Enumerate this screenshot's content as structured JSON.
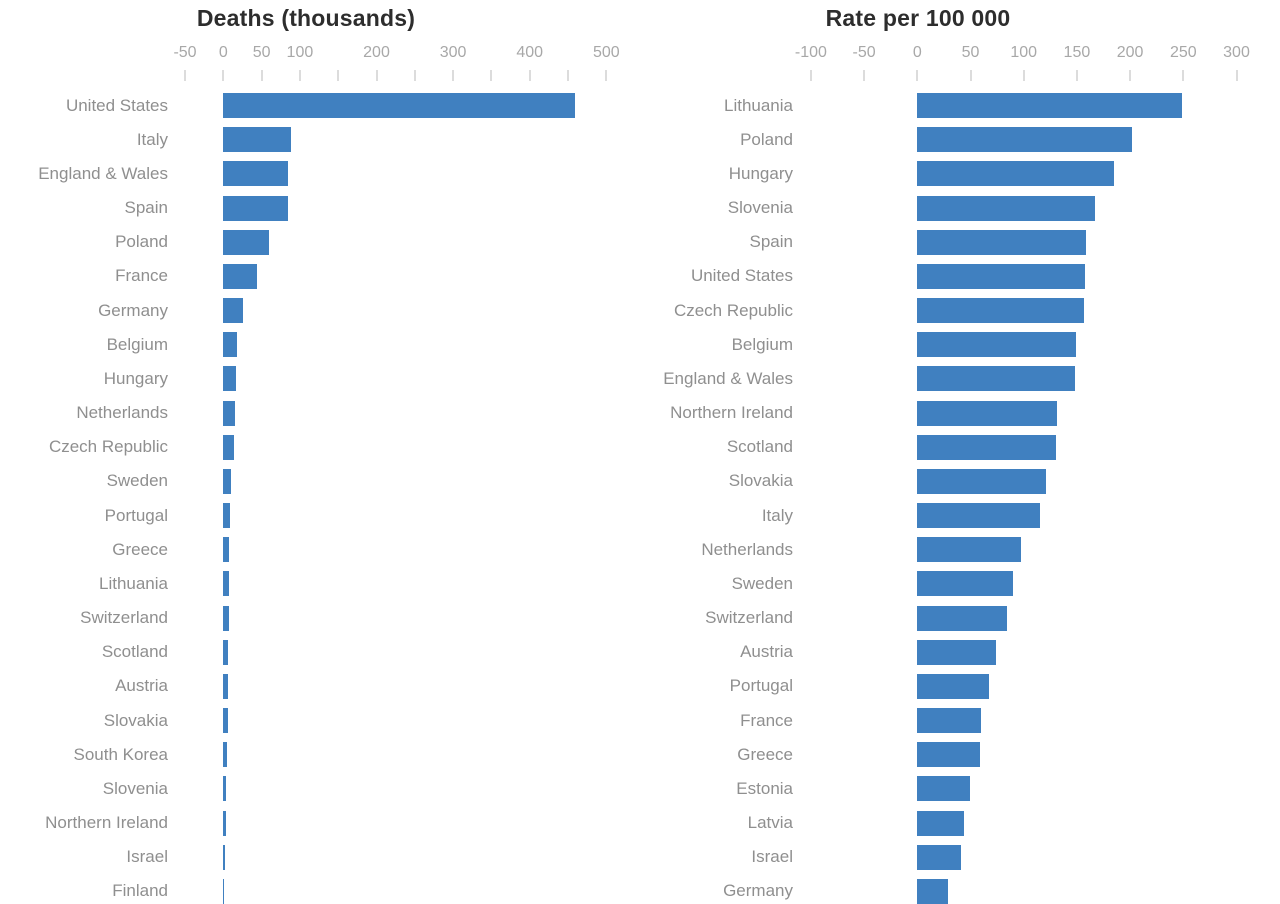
{
  "colors": {
    "bar": "#4080C0",
    "title": "#2D2D2D",
    "category_label": "#8F8F8F",
    "axis_label": "#A8A8A8",
    "tick": "#DCDCDC",
    "background": "#FFFFFF"
  },
  "chart_data": [
    {
      "type": "bar",
      "orientation": "horizontal",
      "title": "Deaths (thousands)",
      "categories": [
        "United States",
        "Italy",
        "England & Wales",
        "Spain",
        "Poland",
        "France",
        "Germany",
        "Belgium",
        "Hungary",
        "Netherlands",
        "Czech Republic",
        "Sweden",
        "Portugal",
        "Greece",
        "Lithuania",
        "Switzerland",
        "Scotland",
        "Austria",
        "Slovakia",
        "South Korea",
        "Slovenia",
        "Northern Ireland",
        "Israel",
        "Finland"
      ],
      "values": [
        459,
        88,
        85,
        84,
        60,
        44,
        26,
        18,
        16,
        15,
        14,
        10,
        8.7,
        7.4,
        7,
        6.8,
        6.5,
        6.2,
        5.5,
        5,
        3.8,
        3,
        2.5,
        1.5
      ],
      "axis": {
        "min": -50,
        "max": 500,
        "tick_step": 50,
        "labeled_ticks": [
          -50,
          0,
          50,
          100,
          200,
          300,
          400,
          500
        ]
      },
      "xlabel": "",
      "ylabel": "",
      "grid": false,
      "legend": false
    },
    {
      "type": "bar",
      "orientation": "horizontal",
      "title": "Rate per 100 000",
      "categories": [
        "Lithuania",
        "Poland",
        "Hungary",
        "Slovenia",
        "Spain",
        "United States",
        "Czech Republic",
        "Belgium",
        "England & Wales",
        "Northern Ireland",
        "Scotland",
        "Slovakia",
        "Italy",
        "Netherlands",
        "Sweden",
        "Switzerland",
        "Austria",
        "Portugal",
        "France",
        "Greece",
        "Estonia",
        "Latvia",
        "Israel",
        "Germany"
      ],
      "values": [
        249,
        202,
        185,
        167,
        159,
        158,
        157,
        149,
        148,
        131,
        130,
        121,
        115,
        97,
        90,
        84,
        74,
        67,
        60,
        59,
        50,
        44,
        41,
        29
      ],
      "axis": {
        "min": -100,
        "max": 300,
        "tick_step": 50,
        "labeled_ticks": [
          -100,
          -50,
          0,
          50,
          100,
          150,
          200,
          250,
          300
        ]
      },
      "xlabel": "",
      "ylabel": "",
      "grid": false,
      "legend": false
    }
  ]
}
